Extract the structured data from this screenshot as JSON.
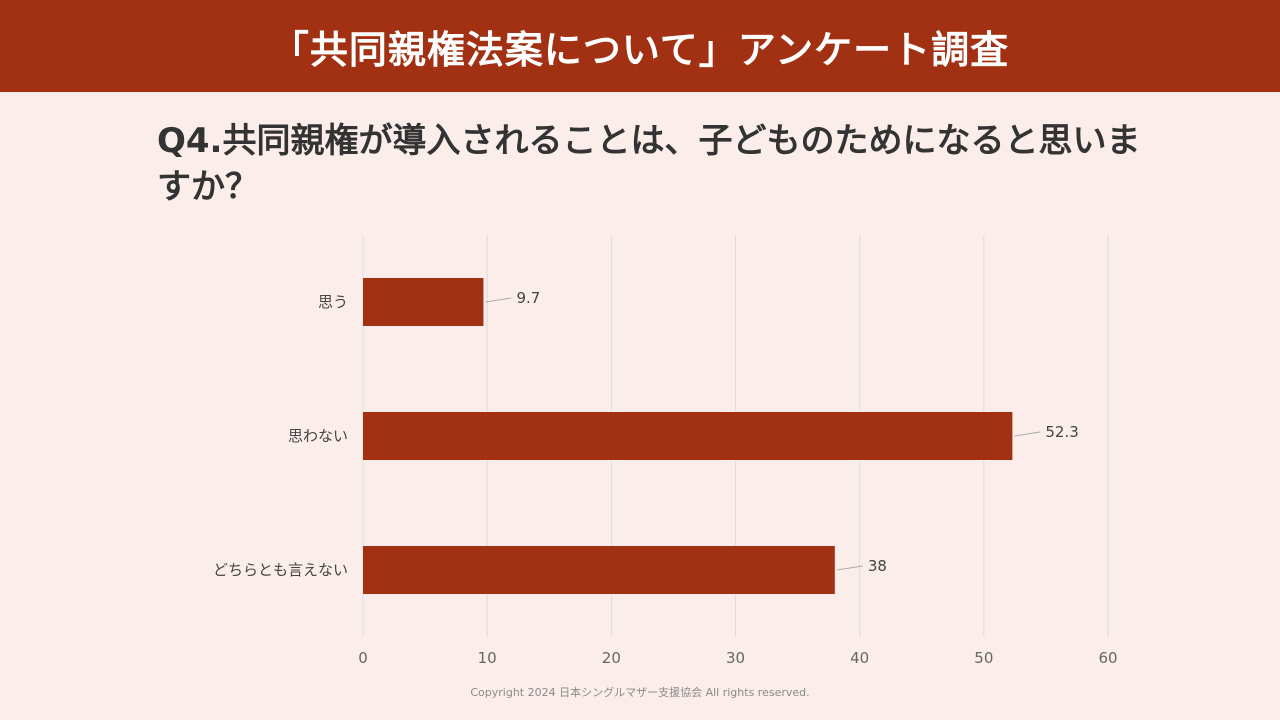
{
  "header": {
    "title": "「共同親権法案について」アンケート調査"
  },
  "question": {
    "text": "Q4.共同親権が導入されることは、子どものためになると思いますか？"
  },
  "colors": {
    "banner": "#a23113",
    "bar": "#a23113",
    "background": "#fbeeea",
    "grid": "#dddddd",
    "text": "#333333"
  },
  "chart_data": {
    "type": "bar",
    "orientation": "horizontal",
    "categories": [
      "思う",
      "思わない",
      "どちらとも言えない"
    ],
    "values": [
      9.7,
      52.3,
      38
    ],
    "data_labels": [
      "9.7",
      "52.3",
      "38"
    ],
    "xlim": [
      0,
      60
    ],
    "x_ticks": [
      "0",
      "10",
      "20",
      "30",
      "40",
      "50",
      "60"
    ],
    "grid": true
  },
  "footer": {
    "copyright": "Copyright 2024 日本シングルマザー支援協会 All rights reserved."
  }
}
